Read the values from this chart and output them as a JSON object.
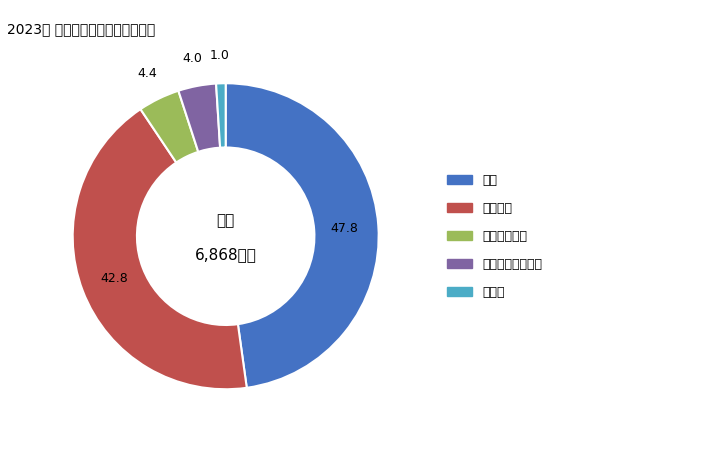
{
  "title": "2023年 輸入相手国のシェア（％）",
  "center_label_line1": "総額",
  "center_label_line2": "6,868億円",
  "labels": [
    "米国",
    "ブラジル",
    "アルゼンチン",
    "南アフリカ共和国",
    "その他"
  ],
  "values": [
    47.8,
    42.8,
    4.4,
    4.0,
    1.0
  ],
  "colors": [
    "#4472C4",
    "#C0504D",
    "#9BBB59",
    "#8064A2",
    "#4BACC6"
  ],
  "wedge_labels": [
    "47.8",
    "42.8",
    "4.4",
    "4.0",
    "1.0"
  ],
  "donut_width": 0.42,
  "figsize": [
    7.28,
    4.5
  ],
  "dpi": 100
}
